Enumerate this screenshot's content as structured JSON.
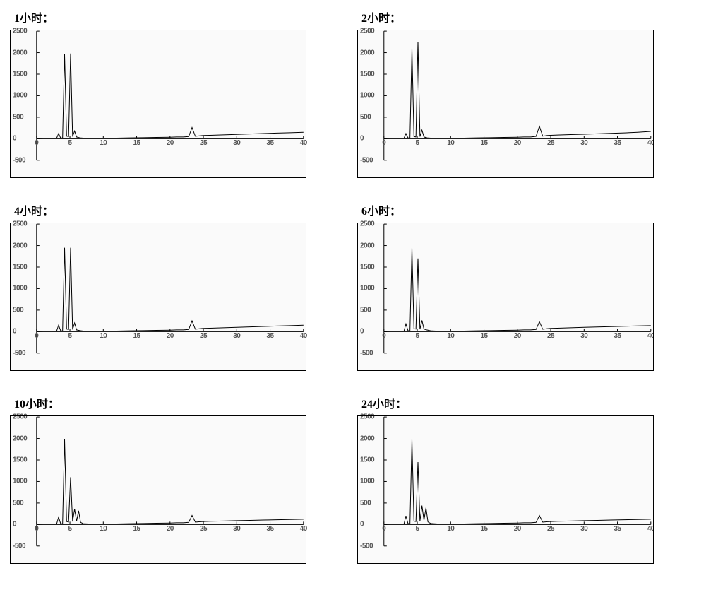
{
  "layout": {
    "cols": 2,
    "rows": 3,
    "aspect": "1000x835"
  },
  "style": {
    "background_color": "#fafafa",
    "frame_color": "#000000",
    "axis_color": "#000000",
    "trace_color": "#000000",
    "trace_width": 1,
    "tick_font": "Arial",
    "tick_fontsize": 10,
    "tick_color": "#555555",
    "title_font": "SimSun",
    "title_fontsize": 16,
    "title_color": "#000000",
    "title_weight": "bold"
  },
  "axes": {
    "xlim": [
      0,
      40
    ],
    "ylim": [
      -500,
      2500
    ],
    "xticks": [
      0,
      5,
      10,
      15,
      20,
      25,
      30,
      35,
      40
    ],
    "yticks": [
      -500,
      0,
      500,
      1000,
      1500,
      2000,
      2500
    ],
    "plot_left_frac": 0.09,
    "plot_bottom_frac": 0.12,
    "plot_width_frac": 0.9,
    "plot_height_frac": 0.87
  },
  "charts": [
    {
      "id": "panel-1h",
      "title": "1小时：",
      "type": "chromatogram",
      "series": [
        [
          0,
          0
        ],
        [
          1,
          5
        ],
        [
          2,
          10
        ],
        [
          2.5,
          15
        ],
        [
          3.0,
          10
        ],
        [
          3.3,
          120
        ],
        [
          3.6,
          20
        ],
        [
          3.9,
          15
        ],
        [
          4.2,
          1960
        ],
        [
          4.5,
          60
        ],
        [
          4.8,
          50
        ],
        [
          5.1,
          1980
        ],
        [
          5.4,
          50
        ],
        [
          5.7,
          180
        ],
        [
          6.0,
          40
        ],
        [
          6.5,
          20
        ],
        [
          7,
          15
        ],
        [
          8,
          10
        ],
        [
          9,
          10
        ],
        [
          10,
          12
        ],
        [
          12,
          15
        ],
        [
          14,
          20
        ],
        [
          16,
          25
        ],
        [
          18,
          30
        ],
        [
          20,
          35
        ],
        [
          21,
          40
        ],
        [
          22,
          40
        ],
        [
          22.8,
          50
        ],
        [
          23.3,
          260
        ],
        [
          23.8,
          55
        ],
        [
          24.5,
          70
        ],
        [
          25,
          75
        ],
        [
          26,
          80
        ],
        [
          28,
          90
        ],
        [
          30,
          100
        ],
        [
          32,
          110
        ],
        [
          34,
          120
        ],
        [
          36,
          130
        ],
        [
          38,
          140
        ],
        [
          40,
          150
        ]
      ]
    },
    {
      "id": "panel-2h",
      "title": "2小时：",
      "type": "chromatogram",
      "series": [
        [
          0,
          0
        ],
        [
          1,
          5
        ],
        [
          2,
          10
        ],
        [
          2.5,
          15
        ],
        [
          3.0,
          10
        ],
        [
          3.3,
          120
        ],
        [
          3.6,
          20
        ],
        [
          3.9,
          15
        ],
        [
          4.2,
          2100
        ],
        [
          4.5,
          50
        ],
        [
          4.8,
          40
        ],
        [
          5.1,
          2250
        ],
        [
          5.4,
          50
        ],
        [
          5.7,
          200
        ],
        [
          6.0,
          40
        ],
        [
          6.5,
          20
        ],
        [
          7,
          15
        ],
        [
          8,
          10
        ],
        [
          9,
          10
        ],
        [
          10,
          12
        ],
        [
          12,
          15
        ],
        [
          14,
          20
        ],
        [
          16,
          25
        ],
        [
          18,
          30
        ],
        [
          20,
          35
        ],
        [
          21,
          40
        ],
        [
          22,
          40
        ],
        [
          22.8,
          55
        ],
        [
          23.3,
          290
        ],
        [
          23.8,
          60
        ],
        [
          24.5,
          75
        ],
        [
          25,
          80
        ],
        [
          26,
          85
        ],
        [
          28,
          95
        ],
        [
          30,
          105
        ],
        [
          32,
          115
        ],
        [
          34,
          125
        ],
        [
          36,
          135
        ],
        [
          38,
          150
        ],
        [
          40,
          170
        ]
      ]
    },
    {
      "id": "panel-4h",
      "title": "4小时：",
      "type": "chromatogram",
      "series": [
        [
          0,
          0
        ],
        [
          1,
          5
        ],
        [
          2,
          10
        ],
        [
          2.5,
          15
        ],
        [
          3.0,
          10
        ],
        [
          3.3,
          150
        ],
        [
          3.6,
          25
        ],
        [
          3.9,
          15
        ],
        [
          4.2,
          1950
        ],
        [
          4.5,
          60
        ],
        [
          4.8,
          50
        ],
        [
          5.1,
          1950
        ],
        [
          5.4,
          50
        ],
        [
          5.7,
          200
        ],
        [
          6.0,
          40
        ],
        [
          6.5,
          25
        ],
        [
          7,
          15
        ],
        [
          8,
          10
        ],
        [
          9,
          10
        ],
        [
          10,
          12
        ],
        [
          12,
          15
        ],
        [
          14,
          20
        ],
        [
          16,
          25
        ],
        [
          18,
          30
        ],
        [
          20,
          35
        ],
        [
          21,
          40
        ],
        [
          22,
          40
        ],
        [
          22.8,
          50
        ],
        [
          23.3,
          250
        ],
        [
          23.8,
          55
        ],
        [
          24.5,
          70
        ],
        [
          25,
          75
        ],
        [
          26,
          80
        ],
        [
          28,
          90
        ],
        [
          30,
          100
        ],
        [
          32,
          110
        ],
        [
          34,
          120
        ],
        [
          36,
          130
        ],
        [
          38,
          140
        ],
        [
          40,
          150
        ]
      ]
    },
    {
      "id": "panel-6h",
      "title": "6小时：",
      "type": "chromatogram",
      "series": [
        [
          0,
          0
        ],
        [
          1,
          5
        ],
        [
          2,
          10
        ],
        [
          2.5,
          15
        ],
        [
          3.0,
          10
        ],
        [
          3.3,
          180
        ],
        [
          3.6,
          25
        ],
        [
          3.9,
          15
        ],
        [
          4.2,
          1950
        ],
        [
          4.5,
          70
        ],
        [
          4.8,
          60
        ],
        [
          5.1,
          1700
        ],
        [
          5.4,
          55
        ],
        [
          5.7,
          260
        ],
        [
          6.0,
          60
        ],
        [
          6.4,
          40
        ],
        [
          7,
          20
        ],
        [
          8,
          12
        ],
        [
          9,
          10
        ],
        [
          10,
          12
        ],
        [
          12,
          15
        ],
        [
          14,
          20
        ],
        [
          16,
          25
        ],
        [
          18,
          30
        ],
        [
          20,
          35
        ],
        [
          21,
          40
        ],
        [
          22,
          40
        ],
        [
          22.8,
          50
        ],
        [
          23.3,
          230
        ],
        [
          23.8,
          55
        ],
        [
          24.5,
          70
        ],
        [
          25,
          75
        ],
        [
          26,
          80
        ],
        [
          28,
          90
        ],
        [
          30,
          100
        ],
        [
          32,
          108
        ],
        [
          34,
          116
        ],
        [
          36,
          124
        ],
        [
          38,
          132
        ],
        [
          40,
          140
        ]
      ]
    },
    {
      "id": "panel-10h",
      "title": "10小时：",
      "type": "chromatogram",
      "series": [
        [
          0,
          0
        ],
        [
          1,
          5
        ],
        [
          2,
          10
        ],
        [
          2.5,
          12
        ],
        [
          3.0,
          10
        ],
        [
          3.3,
          170
        ],
        [
          3.6,
          25
        ],
        [
          3.9,
          15
        ],
        [
          4.2,
          1980
        ],
        [
          4.5,
          70
        ],
        [
          4.8,
          60
        ],
        [
          5.1,
          1100
        ],
        [
          5.4,
          70
        ],
        [
          5.7,
          360
        ],
        [
          6.0,
          80
        ],
        [
          6.3,
          320
        ],
        [
          6.6,
          50
        ],
        [
          7,
          20
        ],
        [
          8,
          12
        ],
        [
          9,
          10
        ],
        [
          10,
          12
        ],
        [
          12,
          15
        ],
        [
          14,
          20
        ],
        [
          16,
          25
        ],
        [
          18,
          30
        ],
        [
          20,
          35
        ],
        [
          21,
          40
        ],
        [
          22,
          40
        ],
        [
          22.8,
          50
        ],
        [
          23.3,
          210
        ],
        [
          23.8,
          55
        ],
        [
          24.5,
          65
        ],
        [
          25,
          70
        ],
        [
          26,
          75
        ],
        [
          28,
          82
        ],
        [
          30,
          90
        ],
        [
          32,
          97
        ],
        [
          34,
          104
        ],
        [
          36,
          110
        ],
        [
          38,
          116
        ],
        [
          40,
          122
        ]
      ]
    },
    {
      "id": "panel-24h",
      "title": "24小时：",
      "type": "chromatogram",
      "series": [
        [
          0,
          0
        ],
        [
          1,
          5
        ],
        [
          2,
          10
        ],
        [
          2.5,
          12
        ],
        [
          3.0,
          10
        ],
        [
          3.3,
          200
        ],
        [
          3.6,
          25
        ],
        [
          3.9,
          15
        ],
        [
          4.2,
          1980
        ],
        [
          4.5,
          80
        ],
        [
          4.8,
          70
        ],
        [
          5.1,
          1450
        ],
        [
          5.4,
          80
        ],
        [
          5.7,
          440
        ],
        [
          6.0,
          100
        ],
        [
          6.3,
          390
        ],
        [
          6.6,
          60
        ],
        [
          7,
          25
        ],
        [
          8,
          14
        ],
        [
          9,
          10
        ],
        [
          10,
          12
        ],
        [
          12,
          15
        ],
        [
          14,
          20
        ],
        [
          16,
          25
        ],
        [
          18,
          30
        ],
        [
          20,
          35
        ],
        [
          21,
          40
        ],
        [
          22,
          40
        ],
        [
          22.8,
          50
        ],
        [
          23.3,
          210
        ],
        [
          23.8,
          55
        ],
        [
          24.5,
          65
        ],
        [
          25,
          70
        ],
        [
          26,
          75
        ],
        [
          28,
          82
        ],
        [
          30,
          90
        ],
        [
          32,
          97
        ],
        [
          34,
          104
        ],
        [
          36,
          110
        ],
        [
          38,
          116
        ],
        [
          40,
          122
        ]
      ]
    }
  ]
}
